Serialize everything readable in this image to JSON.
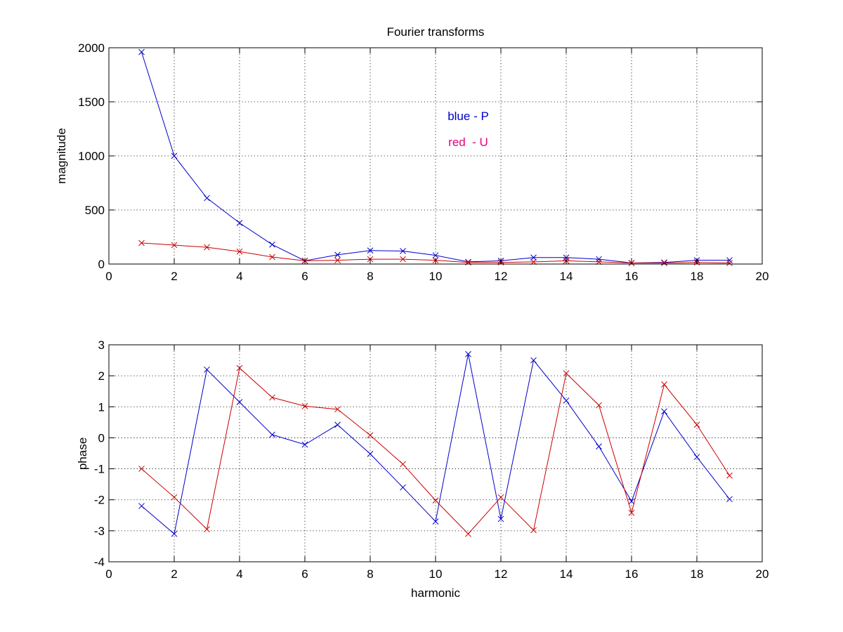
{
  "chart_data": [
    {
      "type": "line",
      "title": "Fourier transforms",
      "xlabel": "",
      "ylabel": "magnitude",
      "xlim": [
        0,
        20
      ],
      "ylim": [
        0,
        2000
      ],
      "xticks": [
        0,
        2,
        4,
        6,
        8,
        10,
        12,
        14,
        16,
        18,
        20
      ],
      "yticks": [
        0,
        500,
        1000,
        1500,
        2000
      ],
      "grid": true,
      "marker": "x",
      "x": [
        1,
        2,
        3,
        4,
        5,
        6,
        7,
        8,
        9,
        10,
        11,
        12,
        13,
        14,
        15,
        16,
        17,
        18,
        19
      ],
      "series": [
        {
          "color": "#0000cc",
          "values": [
            1960,
            1000,
            610,
            380,
            180,
            30,
            85,
            125,
            120,
            80,
            20,
            30,
            60,
            60,
            45,
            10,
            15,
            35,
            35
          ]
        },
        {
          "color": "#cc0000",
          "values": [
            195,
            175,
            155,
            115,
            65,
            30,
            35,
            45,
            45,
            35,
            15,
            15,
            20,
            30,
            20,
            10,
            10,
            15,
            10
          ]
        }
      ],
      "annotations": [
        {
          "text": "blue - P",
          "color": "#0000cc",
          "x": 11,
          "y": 1330
        },
        {
          "text": "red  - U",
          "color": "#e6007e",
          "x": 11,
          "y": 1090
        }
      ]
    },
    {
      "type": "line",
      "title": "",
      "xlabel": "harmonic",
      "ylabel": "phase",
      "xlim": [
        0,
        20
      ],
      "ylim": [
        -4,
        3
      ],
      "xticks": [
        0,
        2,
        4,
        6,
        8,
        10,
        12,
        14,
        16,
        18,
        20
      ],
      "yticks": [
        -4,
        -3,
        -2,
        -1,
        0,
        1,
        2,
        3
      ],
      "grid": true,
      "marker": "x",
      "x": [
        1,
        2,
        3,
        4,
        5,
        6,
        7,
        8,
        9,
        10,
        11,
        12,
        13,
        14,
        15,
        16,
        17,
        18,
        19
      ],
      "series": [
        {
          "color": "#0000cc",
          "values": [
            -2.2,
            -3.1,
            2.2,
            1.15,
            0.1,
            -0.22,
            0.42,
            -0.52,
            -1.6,
            -2.7,
            2.7,
            -2.62,
            2.5,
            1.2,
            -0.28,
            -2.05,
            0.85,
            -0.62,
            -1.98
          ]
        },
        {
          "color": "#cc0000",
          "values": [
            -1.0,
            -1.92,
            -2.95,
            2.25,
            1.3,
            1.02,
            0.92,
            0.08,
            -0.85,
            -2.02,
            -3.1,
            -1.92,
            -2.98,
            2.08,
            1.05,
            -2.42,
            1.72,
            0.42,
            -1.22
          ]
        }
      ],
      "annotations": []
    }
  ]
}
